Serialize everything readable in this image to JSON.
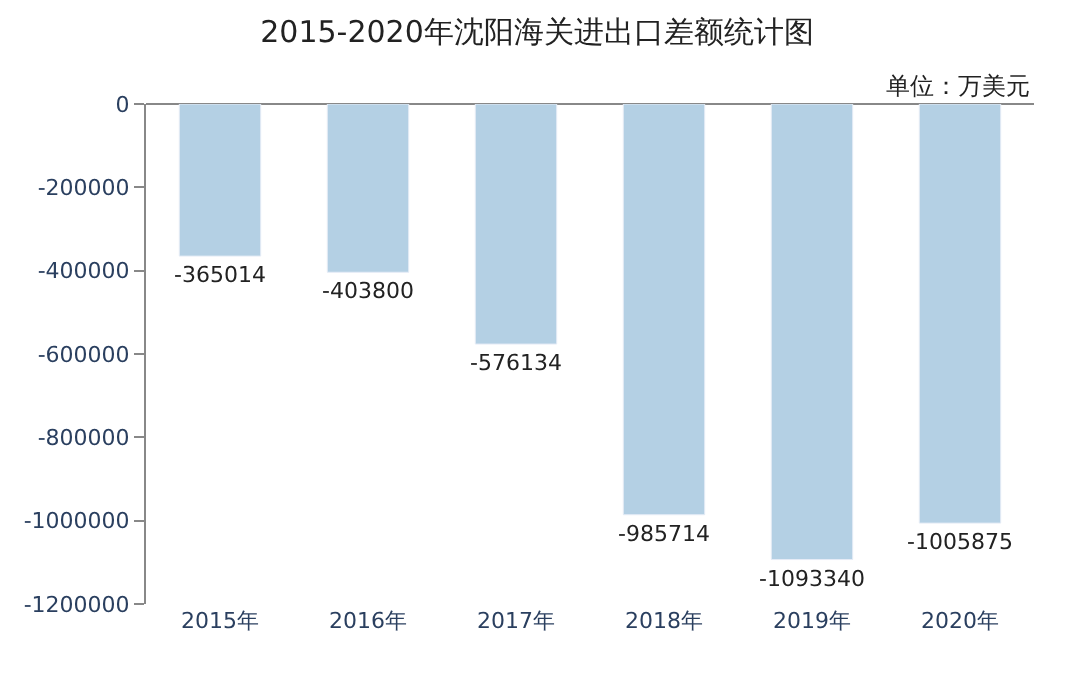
{
  "chart_data": {
    "type": "bar",
    "title": "2015-2020年沈阳海关进出口差额统计图",
    "annotations": [
      "单位：万美元"
    ],
    "categories": [
      "2015年",
      "2016年",
      "2017年",
      "2018年",
      "2019年",
      "2020年"
    ],
    "values": [
      -365014,
      -403800,
      -576134,
      -985714,
      -1093340,
      -1005875
    ],
    "color": "#b4d0e4",
    "ylim": [
      -1200000,
      0
    ],
    "yticks": [
      -1200000,
      -1000000,
      -800000,
      -600000,
      -400000,
      -200000,
      0
    ],
    "data_labels": true
  }
}
